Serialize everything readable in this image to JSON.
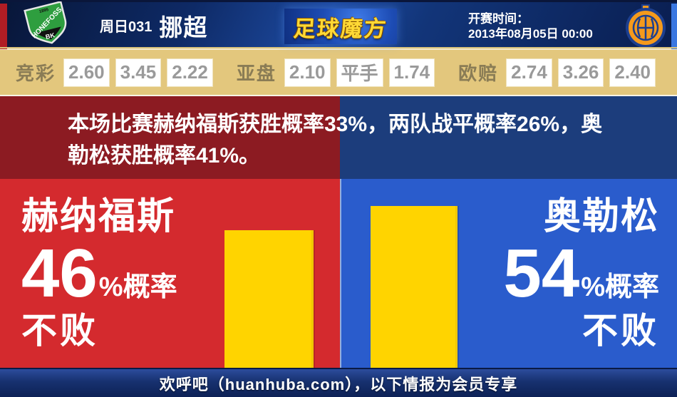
{
  "header": {
    "match_code": "周日031",
    "league": "挪超",
    "site_logo_text": "足球魔方",
    "kickoff_label": "开赛时间：",
    "kickoff_time": "2013年08月05日 00:00",
    "home_badge": {
      "year": "1895",
      "name": "HONEFOSS",
      "sub": "BK"
    }
  },
  "odds": {
    "groups": [
      {
        "label": "竞彩",
        "values": [
          "2.60",
          "3.45",
          "2.22"
        ]
      },
      {
        "label": "亚盘",
        "values": [
          "2.10",
          "平手",
          "1.74"
        ]
      },
      {
        "label": "欧赔",
        "values": [
          "2.74",
          "3.26",
          "2.40"
        ]
      }
    ]
  },
  "banner": {
    "line1": "本场比赛赫纳福斯获胜概率33%，两队战平概率26%，奥",
    "line2": "勒松获胜概率41%。"
  },
  "prediction": {
    "home": {
      "team": "赫纳福斯",
      "probability": "46",
      "prob_suffix": "%概率",
      "result": "不败",
      "bar_percent": 46
    },
    "away": {
      "team": "奥勒松",
      "probability": "54",
      "prob_suffix": "%概率",
      "result": "不败",
      "bar_percent": 54
    }
  },
  "footer": {
    "text": "欢呼吧（huanhuba.com），以下情报为会员专享"
  },
  "chart_data": {
    "type": "bar",
    "categories": [
      "赫纳福斯 不败",
      "奥勒松 不败"
    ],
    "values": [
      46,
      54
    ],
    "unit": "%",
    "title": "不败概率对比",
    "annotations": {
      "home_win": 33,
      "draw": 26,
      "away_win": 41
    },
    "bar_color": "#ffd400",
    "ylim": [
      0,
      63
    ]
  },
  "colors": {
    "home_accent": "#d42a2e",
    "away_accent": "#2a5ccc",
    "banner_home": "#8c1b22",
    "banner_away": "#1c3d7c",
    "bar_yellow": "#ffd400",
    "odds_bg": "#e3c77d",
    "header_navy": "#0e2a66",
    "logo_gold": "#ffd935"
  }
}
